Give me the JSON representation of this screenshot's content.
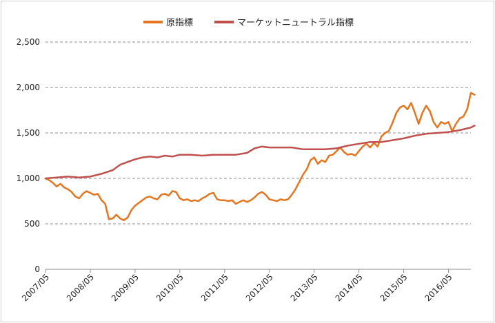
{
  "chart_data": {
    "type": "line",
    "title": "",
    "xlabel": "",
    "ylabel": "",
    "ylim": [
      0,
      2500
    ],
    "yticks": [
      0,
      500,
      1000,
      1500,
      2000,
      2500
    ],
    "ytick_labels": [
      "0",
      "500",
      "1,000",
      "1,500",
      "2,000",
      "2,500"
    ],
    "x_range": [
      "2007/05",
      "2016/11"
    ],
    "xtick_labels": [
      "2007/05",
      "2008/05",
      "2009/05",
      "2010/05",
      "2011/05",
      "2012/05",
      "2013/05",
      "2014/05",
      "2015/05",
      "2016/05"
    ],
    "grid": "horizontal-dashed",
    "legend_position": "top-center",
    "series": [
      {
        "name": "原指標",
        "color": "#E8741E",
        "points": [
          [
            "2007/05",
            1000
          ],
          [
            "2007/06",
            980
          ],
          [
            "2007/07",
            950
          ],
          [
            "2007/08",
            910
          ],
          [
            "2007/09",
            940
          ],
          [
            "2007/10",
            900
          ],
          [
            "2007/11",
            880
          ],
          [
            "2007/12",
            850
          ],
          [
            "2008/01",
            800
          ],
          [
            "2008/02",
            780
          ],
          [
            "2008/03",
            830
          ],
          [
            "2008/04",
            860
          ],
          [
            "2008/05",
            840
          ],
          [
            "2008/06",
            820
          ],
          [
            "2008/07",
            830
          ],
          [
            "2008/08",
            760
          ],
          [
            "2008/09",
            720
          ],
          [
            "2008/10",
            550
          ],
          [
            "2008/11",
            560
          ],
          [
            "2008/12",
            600
          ],
          [
            "2009/01",
            560
          ],
          [
            "2009/02",
            540
          ],
          [
            "2009/03",
            570
          ],
          [
            "2009/04",
            650
          ],
          [
            "2009/05",
            700
          ],
          [
            "2009/06",
            730
          ],
          [
            "2009/07",
            760
          ],
          [
            "2009/08",
            790
          ],
          [
            "2009/09",
            800
          ],
          [
            "2009/10",
            780
          ],
          [
            "2009/11",
            770
          ],
          [
            "2009/12",
            820
          ],
          [
            "2010/01",
            830
          ],
          [
            "2010/02",
            810
          ],
          [
            "2010/03",
            860
          ],
          [
            "2010/04",
            850
          ],
          [
            "2010/05",
            780
          ],
          [
            "2010/06",
            760
          ],
          [
            "2010/07",
            770
          ],
          [
            "2010/08",
            750
          ],
          [
            "2010/09",
            760
          ],
          [
            "2010/10",
            750
          ],
          [
            "2010/11",
            780
          ],
          [
            "2010/12",
            800
          ],
          [
            "2011/01",
            830
          ],
          [
            "2011/02",
            840
          ],
          [
            "2011/03",
            770
          ],
          [
            "2011/04",
            760
          ],
          [
            "2011/05",
            760
          ],
          [
            "2011/06",
            750
          ],
          [
            "2011/07",
            760
          ],
          [
            "2011/08",
            720
          ],
          [
            "2011/09",
            740
          ],
          [
            "2011/10",
            760
          ],
          [
            "2011/11",
            740
          ],
          [
            "2011/12",
            760
          ],
          [
            "2012/01",
            790
          ],
          [
            "2012/02",
            830
          ],
          [
            "2012/03",
            850
          ],
          [
            "2012/04",
            820
          ],
          [
            "2012/05",
            770
          ],
          [
            "2012/06",
            760
          ],
          [
            "2012/07",
            750
          ],
          [
            "2012/08",
            770
          ],
          [
            "2012/09",
            760
          ],
          [
            "2012/10",
            770
          ],
          [
            "2012/11",
            820
          ],
          [
            "2012/12",
            880
          ],
          [
            "2013/01",
            960
          ],
          [
            "2013/02",
            1040
          ],
          [
            "2013/03",
            1100
          ],
          [
            "2013/04",
            1200
          ],
          [
            "2013/05",
            1230
          ],
          [
            "2013/06",
            1160
          ],
          [
            "2013/07",
            1200
          ],
          [
            "2013/08",
            1180
          ],
          [
            "2013/09",
            1250
          ],
          [
            "2013/10",
            1260
          ],
          [
            "2013/11",
            1300
          ],
          [
            "2013/12",
            1340
          ],
          [
            "2014/01",
            1290
          ],
          [
            "2014/02",
            1260
          ],
          [
            "2014/03",
            1270
          ],
          [
            "2014/04",
            1250
          ],
          [
            "2014/05",
            1300
          ],
          [
            "2014/06",
            1350
          ],
          [
            "2014/07",
            1380
          ],
          [
            "2014/08",
            1340
          ],
          [
            "2014/09",
            1390
          ],
          [
            "2014/10",
            1350
          ],
          [
            "2014/11",
            1460
          ],
          [
            "2014/12",
            1500
          ],
          [
            "2015/01",
            1520
          ],
          [
            "2015/02",
            1610
          ],
          [
            "2015/03",
            1720
          ],
          [
            "2015/04",
            1780
          ],
          [
            "2015/05",
            1800
          ],
          [
            "2015/06",
            1760
          ],
          [
            "2015/07",
            1830
          ],
          [
            "2015/08",
            1720
          ],
          [
            "2015/09",
            1600
          ],
          [
            "2015/10",
            1720
          ],
          [
            "2015/11",
            1800
          ],
          [
            "2015/12",
            1740
          ],
          [
            "2016/01",
            1620
          ],
          [
            "2016/02",
            1560
          ],
          [
            "2016/03",
            1620
          ],
          [
            "2016/04",
            1600
          ],
          [
            "2016/05",
            1620
          ],
          [
            "2016/06",
            1520
          ],
          [
            "2016/07",
            1600
          ],
          [
            "2016/08",
            1660
          ],
          [
            "2016/09",
            1680
          ],
          [
            "2016/10",
            1760
          ],
          [
            "2016/11",
            1940
          ],
          [
            "2016/12",
            1920
          ]
        ]
      },
      {
        "name": "マーケットニュートラル指標",
        "color": "#C0504D",
        "points": [
          [
            "2007/05",
            1000
          ],
          [
            "2007/08",
            1010
          ],
          [
            "2007/11",
            1020
          ],
          [
            "2008/02",
            1010
          ],
          [
            "2008/05",
            1020
          ],
          [
            "2008/08",
            1050
          ],
          [
            "2008/11",
            1090
          ],
          [
            "2009/01",
            1150
          ],
          [
            "2009/03",
            1180
          ],
          [
            "2009/05",
            1210
          ],
          [
            "2009/07",
            1230
          ],
          [
            "2009/09",
            1240
          ],
          [
            "2009/11",
            1230
          ],
          [
            "2010/01",
            1250
          ],
          [
            "2010/03",
            1240
          ],
          [
            "2010/05",
            1260
          ],
          [
            "2010/08",
            1260
          ],
          [
            "2010/11",
            1250
          ],
          [
            "2011/02",
            1260
          ],
          [
            "2011/05",
            1260
          ],
          [
            "2011/08",
            1260
          ],
          [
            "2011/11",
            1280
          ],
          [
            "2012/01",
            1330
          ],
          [
            "2012/03",
            1350
          ],
          [
            "2012/05",
            1340
          ],
          [
            "2012/08",
            1340
          ],
          [
            "2012/11",
            1340
          ],
          [
            "2013/02",
            1320
          ],
          [
            "2013/05",
            1320
          ],
          [
            "2013/08",
            1320
          ],
          [
            "2013/11",
            1330
          ],
          [
            "2014/02",
            1360
          ],
          [
            "2014/05",
            1380
          ],
          [
            "2014/08",
            1400
          ],
          [
            "2014/11",
            1400
          ],
          [
            "2015/02",
            1420
          ],
          [
            "2015/05",
            1440
          ],
          [
            "2015/08",
            1470
          ],
          [
            "2015/11",
            1490
          ],
          [
            "2016/02",
            1500
          ],
          [
            "2016/05",
            1510
          ],
          [
            "2016/08",
            1530
          ],
          [
            "2016/11",
            1560
          ],
          [
            "2016/12",
            1580
          ]
        ]
      }
    ]
  }
}
